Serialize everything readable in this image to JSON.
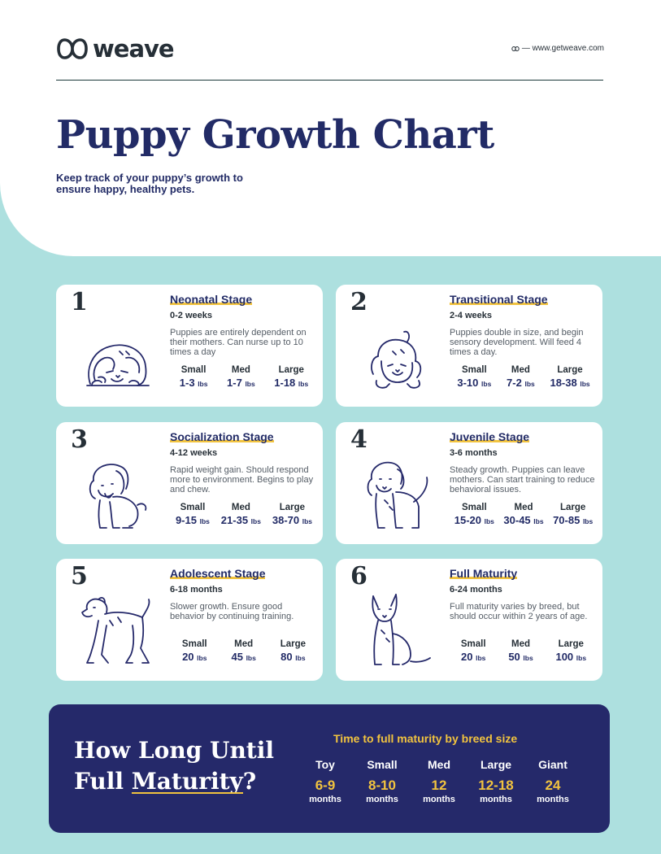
{
  "brand": {
    "name": "weave",
    "website": "— www.getweave.com",
    "link_icon": "infinity-icon"
  },
  "header": {
    "title_word1": "Puppy",
    "title_rest": " Growth Chart",
    "subtitle": "Keep track of your puppy’s growth to ensure happy, healthy pets."
  },
  "colors": {
    "navy": "#25296a",
    "mint": "#ade0df",
    "accent": "#f1c33f"
  },
  "stages": [
    {
      "num": "1",
      "name": "Neonatal Stage",
      "age": "0-2 weeks",
      "desc": "Puppies are entirely dependent on their mothers. Can nurse up to 10 times a day",
      "sizes": [
        {
          "label": "Small",
          "value": "1-3",
          "unit": "lbs"
        },
        {
          "label": "Med",
          "value": "1-7",
          "unit": "lbs"
        },
        {
          "label": "Large",
          "value": "1-18",
          "unit": "lbs"
        }
      ]
    },
    {
      "num": "2",
      "name": "Transitional Stage",
      "age": "2-4 weeks",
      "desc": "Puppies double in size, and begin sensory development. Will feed 4 times a day.",
      "sizes": [
        {
          "label": "Small",
          "value": "3-10",
          "unit": "lbs"
        },
        {
          "label": "Med",
          "value": "7-2",
          "unit": "lbs"
        },
        {
          "label": "Large",
          "value": "18-38",
          "unit": "lbs"
        }
      ]
    },
    {
      "num": "3",
      "name": "Socialization Stage",
      "age": "4-12 weeks",
      "desc": "Rapid weight gain. Should respond more to environment. Begins to play and chew.",
      "sizes": [
        {
          "label": "Small",
          "value": "9-15",
          "unit": "lbs"
        },
        {
          "label": "Med",
          "value": "21-35",
          "unit": "lbs"
        },
        {
          "label": "Large",
          "value": "38-70",
          "unit": "lbs"
        }
      ]
    },
    {
      "num": "4",
      "name": "Juvenile Stage",
      "age": "3-6 months",
      "desc": "Steady growth. Puppies can leave mothers. Can start training to reduce behavioral issues.",
      "sizes": [
        {
          "label": "Small",
          "value": "15-20",
          "unit": "lbs"
        },
        {
          "label": "Med",
          "value": "30-45",
          "unit": "lbs"
        },
        {
          "label": "Large",
          "value": "70-85",
          "unit": "lbs"
        }
      ]
    },
    {
      "num": "5",
      "name": "Adolescent Stage",
      "age": "6-18 months",
      "desc": "Slower growth. Ensure good behavior by continuing training.",
      "sizes": [
        {
          "label": "Small",
          "value": "20",
          "unit": "lbs"
        },
        {
          "label": "Med",
          "value": "45",
          "unit": "lbs"
        },
        {
          "label": "Large",
          "value": "80",
          "unit": "lbs"
        }
      ]
    },
    {
      "num": "6",
      "name": "Full Maturity",
      "age": "6-24 months",
      "desc": "Full maturity varies by breed, but should occur within 2 years of age.",
      "sizes": [
        {
          "label": "Small",
          "value": "20",
          "unit": "lbs"
        },
        {
          "label": "Med",
          "value": "50",
          "unit": "lbs"
        },
        {
          "label": "Large",
          "value": "100",
          "unit": "lbs"
        }
      ]
    }
  ],
  "footer": {
    "title_line1": "How Long Until",
    "title_line2a": "Full ",
    "title_line2b": "Maturity",
    "title_line2c": "?",
    "heading": "Time to full maturity by breed size",
    "breeds": [
      {
        "name": "Toy",
        "months": "6-9",
        "unit": "months"
      },
      {
        "name": "Small",
        "months": "8-10",
        "unit": "months"
      },
      {
        "name": "Med",
        "months": "12",
        "unit": "months"
      },
      {
        "name": "Large",
        "months": "12-18",
        "unit": "months"
      },
      {
        "name": "Giant",
        "months": "24",
        "unit": "months"
      }
    ]
  }
}
